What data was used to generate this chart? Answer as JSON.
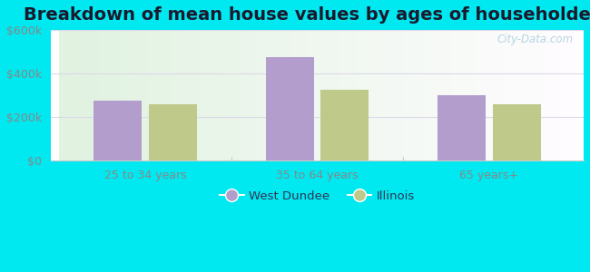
{
  "title": "Breakdown of mean house values by ages of householders",
  "categories": [
    "25 to 34 years",
    "35 to 64 years",
    "65 years+"
  ],
  "west_dundee": [
    275000,
    475000,
    300000
  ],
  "illinois": [
    258000,
    325000,
    258000
  ],
  "ylim": [
    0,
    600000
  ],
  "yticks": [
    0,
    200000,
    400000,
    600000
  ],
  "ytick_labels": [
    "$0",
    "$200k",
    "$400k",
    "$600k"
  ],
  "bar_color_wd": "#b39dcc",
  "bar_color_il": "#bec98a",
  "legend_wd": "West Dundee",
  "legend_il": "Illinois",
  "bg_outer": "#00e8f0",
  "title_fontsize": 14,
  "watermark": "City-Data.com",
  "grid_color": "#ddd8e8",
  "tick_color": "#888888",
  "spine_color": "#cccccc"
}
